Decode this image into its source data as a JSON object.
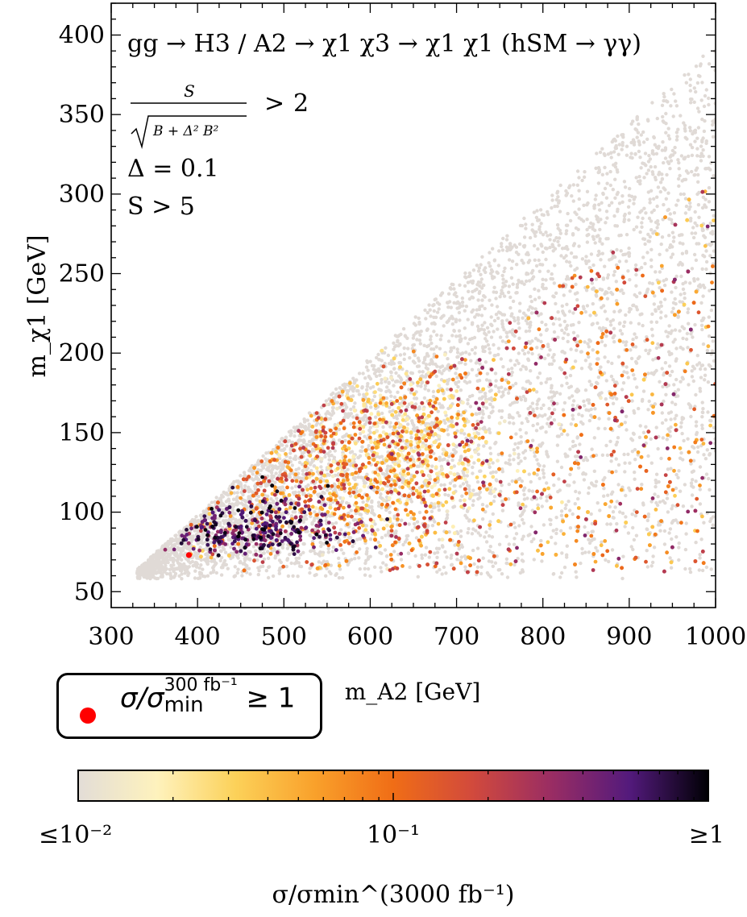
{
  "chart_data": {
    "type": "scatter",
    "title": "gg → H3 / A2 → χ1 χ3 → χ1 χ1 (hSM → γγ)",
    "xlabel": "m_A2 [GeV]",
    "ylabel": "m_χ1 [GeV]",
    "xlim": [
      300,
      1000
    ],
    "ylim": [
      40,
      420
    ],
    "xticks": [
      300,
      400,
      500,
      600,
      700,
      800,
      900,
      1000
    ],
    "yticks": [
      50,
      100,
      150,
      200,
      250,
      300,
      350,
      400
    ],
    "xtick_labels": [
      "300",
      "400",
      "500",
      "600",
      "700",
      "800",
      "900",
      "1000"
    ],
    "ytick_labels": [
      "50",
      "100",
      "150",
      "200",
      "250",
      "300",
      "350",
      "400"
    ],
    "annotations": {
      "line1_lhs_num": "S",
      "line1_lhs_den": "B + Δ² B²",
      "line1_op": ">",
      "line1_rhs": "2",
      "line2": "Δ = 0.1",
      "line3": "S > 5"
    },
    "kinematic_bound": [
      [
        330,
        62
      ],
      [
        1000,
        392
      ]
    ],
    "regions": [
      {
        "name": "excluded-by-cut (grey)",
        "color": "#e0dad6",
        "x_range": [
          330,
          1000
        ],
        "y_range": [
          62,
          392
        ]
      },
      {
        "name": "low-ratio (pale yellow)",
        "color": "#fde9a0",
        "center": [
          640,
          140
        ]
      },
      {
        "name": "mid-ratio (orange)",
        "color": "#f37a1d",
        "center": [
          560,
          150
        ]
      },
      {
        "name": "high-ratio (dark purple/black)",
        "color": "#2a0e33",
        "center": [
          470,
          80
        ]
      }
    ],
    "highlight_points": [
      {
        "x": 390,
        "y": 73,
        "label": "σ/σmin(300 fb⁻¹) ≥ 1"
      }
    ],
    "legend": {
      "marker_color": "#ff0000",
      "label": "σ/σmin^(300 fb⁻¹) ≥ 1",
      "sym": "σ/σ",
      "sup": "300 fb⁻¹",
      "sub": "min",
      "rhs": "≥ 1"
    },
    "colorbar": {
      "scale": "log",
      "range": [
        0.01,
        1
      ],
      "colors": [
        "#e3ddd7",
        "#fef2bd",
        "#fcd159",
        "#f9a12b",
        "#f06d16",
        "#d24a3c",
        "#9a2d63",
        "#531a7c",
        "#000004"
      ],
      "ticks": [
        0.01,
        0.1,
        1
      ],
      "tick_labels": [
        "≤10⁻²",
        "10⁻¹",
        "≥1"
      ],
      "label": "σ/σmin^(3000 fb⁻¹)"
    }
  }
}
